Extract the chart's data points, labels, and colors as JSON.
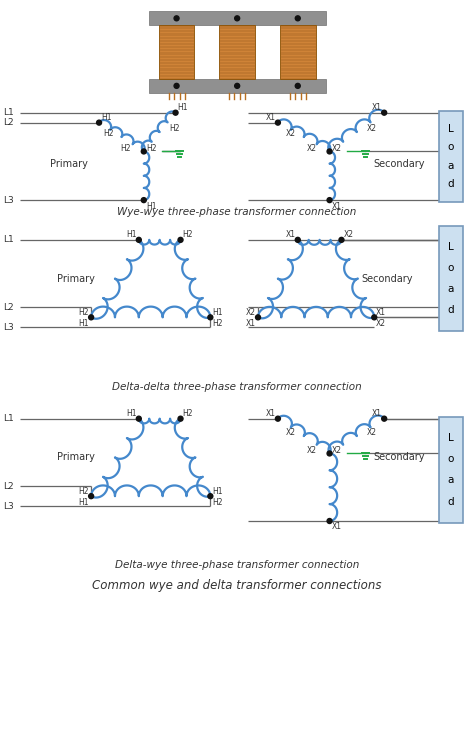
{
  "title": "Common wye and delta transformer connections",
  "diagram1_caption": "Wye-wye three-phase transformer connection",
  "diagram2_caption": "Delta-delta three-phase transformer connection",
  "diagram3_caption": "Delta-wye three-phase transformer connection",
  "coil_color": "#4488cc",
  "line_color": "#666666",
  "ground_color": "#22aa44",
  "load_box_color": "#cce0f0",
  "load_box_edge": "#7799bb",
  "dot_color": "#111111",
  "label_color": "#333333",
  "bg_color": "#ffffff",
  "font_size": 6.5,
  "caption_font_size": 7.5,
  "title_font_size": 8.5
}
